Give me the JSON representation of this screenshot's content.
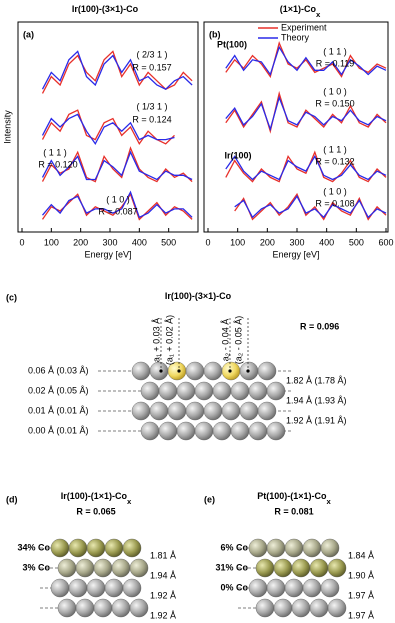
{
  "chart_data": [
    {
      "type": "line",
      "panel_label": "(a)",
      "title": "Ir(100)-(3×1)-Co",
      "y_label": "Intensity",
      "x_label": "Energy [eV]",
      "xlim": [
        0,
        600
      ],
      "xticks": [
        0,
        100,
        200,
        300,
        400,
        500
      ],
      "ylim": [
        0,
        100
      ],
      "series": [
        {
          "color": "#e8302a"
        },
        {
          "color": "#2a2ae8"
        }
      ],
      "curves": [
        {
          "beam": "( 2/3 1 )",
          "r_factor": "R = 0.157",
          "x": [
            70,
            100,
            130,
            160,
            190,
            220,
            250,
            280,
            310,
            340,
            370,
            400,
            430,
            460,
            490,
            520,
            550,
            580
          ],
          "values": [
            [
              66,
              74,
              70,
              80,
              84,
              76,
              72,
              82,
              86,
              74,
              80,
              70,
              76,
              72,
              68,
              70,
              76,
              72
            ],
            [
              68,
              76,
              72,
              82,
              86,
              74,
              70,
              80,
              84,
              76,
              82,
              72,
              74,
              70,
              68,
              72,
              74,
              70
            ]
          ]
        },
        {
          "beam": "( 1/3 1 )",
          "r_factor": "R = 0.124",
          "x": [
            70,
            100,
            130,
            160,
            190,
            220,
            250,
            280,
            310,
            340,
            370,
            400,
            430,
            460,
            490,
            520,
            550,
            580
          ],
          "values": [
            [
              44,
              52,
              48,
              56,
              58,
              46,
              44,
              52,
              54,
              46,
              50,
              42,
              48,
              44,
              42,
              46,
              null,
              null
            ],
            [
              46,
              54,
              50,
              54,
              56,
              48,
              42,
              50,
              52,
              48,
              52,
              44,
              46,
              44,
              44,
              45,
              null,
              null
            ]
          ]
        },
        {
          "beam": "( 1 1 )",
          "r_factor": "R = 0.120",
          "x": [
            70,
            100,
            130,
            160,
            190,
            220,
            250,
            280,
            310,
            340,
            370,
            400,
            430,
            460,
            490,
            520,
            550,
            580
          ],
          "values": [
            [
              24,
              32,
              28,
              30,
              38,
              26,
              24,
              36,
              30,
              26,
              40,
              30,
              26,
              24,
              30,
              26,
              28,
              24
            ],
            [
              26,
              34,
              27,
              31,
              36,
              25,
              25,
              34,
              31,
              27,
              38,
              29,
              27,
              25,
              29,
              27,
              27,
              25
            ]
          ]
        },
        {
          "beam": "( 1 0 )",
          "r_factor": "R = 0.087",
          "x": [
            70,
            100,
            130,
            160,
            190,
            220,
            250,
            280,
            310,
            340,
            370,
            400,
            430,
            460,
            490,
            520,
            550,
            580
          ],
          "values": [
            [
              6,
              12,
              10,
              14,
              18,
              8,
              12,
              10,
              8,
              12,
              18,
              6,
              10,
              14,
              8,
              12,
              10,
              6
            ],
            [
              8,
              13,
              9,
              15,
              17,
              9,
              11,
              11,
              9,
              11,
              19,
              7,
              9,
              13,
              9,
              11,
              11,
              7
            ]
          ]
        }
      ]
    },
    {
      "type": "line",
      "panel_label": "(b)",
      "title": "(1×1)-Co",
      "title_subscript": "x",
      "x_label": "Energy [eV]",
      "xlim": [
        0,
        600
      ],
      "xticks": [
        0,
        100,
        200,
        300,
        400,
        500,
        600
      ],
      "ylim": [
        0,
        100
      ],
      "series": [
        {
          "name": "Experiment",
          "color": "#e8302a"
        },
        {
          "name": "Theory",
          "color": "#2a2ae8"
        }
      ],
      "curves": [
        {
          "group": "Pt(100)",
          "beam": "( 1 1 )",
          "r_factor": "R = 0.119",
          "x": [
            60,
            90,
            120,
            150,
            180,
            210,
            240,
            270,
            300,
            330,
            360,
            390,
            420,
            450,
            480,
            510,
            540,
            570,
            600
          ],
          "values": [
            [
              76,
              82,
              78,
              84,
              80,
              74,
              90,
              80,
              78,
              82,
              76,
              78,
              80,
              74,
              84,
              78,
              76,
              80,
              78
            ],
            [
              78,
              84,
              77,
              82,
              81,
              75,
              88,
              81,
              77,
              83,
              77,
              77,
              81,
              75,
              82,
              79,
              75,
              79,
              77
            ]
          ]
        },
        {
          "beam": "( 1 0 )",
          "r_factor": "R = 0.150",
          "x": [
            60,
            90,
            120,
            150,
            180,
            210,
            240,
            270,
            300,
            330,
            360,
            390,
            420,
            450,
            480,
            510,
            540,
            570,
            600
          ],
          "values": [
            [
              52,
              58,
              50,
              56,
              62,
              48,
              66,
              52,
              50,
              58,
              54,
              50,
              56,
              52,
              60,
              52,
              50,
              56,
              52
            ],
            [
              54,
              59,
              51,
              55,
              61,
              49,
              64,
              53,
              51,
              57,
              55,
              51,
              55,
              53,
              58,
              53,
              51,
              55,
              53
            ]
          ]
        },
        {
          "group": "Ir(100)",
          "beam": "( 1 1 )",
          "r_factor": "R = 0.132",
          "x": [
            60,
            90,
            120,
            150,
            180,
            210,
            240,
            270,
            300,
            330,
            360,
            390,
            420,
            450,
            480,
            510,
            540,
            570,
            600
          ],
          "values": [
            [
              26,
              34,
              28,
              24,
              30,
              26,
              24,
              36,
              30,
              28,
              38,
              26,
              24,
              28,
              34,
              26,
              24,
              30,
              26
            ],
            [
              30,
              36,
              29,
              25,
              29,
              27,
              25,
              34,
              31,
              29,
              36,
              27,
              25,
              27,
              32,
              27,
              25,
              29,
              27
            ]
          ]
        },
        {
          "beam": "( 1 0 )",
          "r_factor": "R = 0.108",
          "x": [
            90,
            120,
            150,
            180,
            210,
            240,
            270,
            300,
            330,
            360,
            390,
            420,
            450,
            480,
            510,
            540,
            570,
            600
          ],
          "values": [
            [
              10,
              16,
              6,
              10,
              14,
              8,
              12,
              18,
              8,
              12,
              6,
              14,
              10,
              8,
              16,
              6,
              12,
              8
            ],
            [
              12,
              15,
              7,
              11,
              13,
              9,
              11,
              17,
              9,
              11,
              7,
              13,
              11,
              9,
              15,
              7,
              11,
              9
            ]
          ]
        }
      ]
    }
  ],
  "panel_c": {
    "label": "(c)",
    "title": "Ir(100)-(3×1)-Co",
    "r_factor": "R = 0.096",
    "annotations": [
      "a₁ + 0.03 Å",
      "(a₁ + 0.02 Å)",
      "a₂ - 0.04 Å",
      "(a₂ - 0.05 Å)"
    ],
    "left_labels": [
      "0.06 Å (0.03 Å)",
      "0.02 Å (0.05 Å)",
      "0.01 Å (0.01 Å)",
      "0.00 Å (0.01 Å)"
    ],
    "right_labels": [
      "1.82 Å (1.78 Å)",
      "1.94 Å (1.93 Å)",
      "1.92 Å (1.91 Å)"
    ]
  },
  "panel_d": {
    "label": "(d)",
    "title": "Ir(100)-(1×1)-Co",
    "title_subscript": "x",
    "r_factor": "R = 0.065",
    "left_labels": [
      "34% Co",
      "3% Co"
    ],
    "right_labels": [
      "1.81 Å",
      "1.94 Å",
      "1.92 Å",
      "1.92 Å"
    ]
  },
  "panel_e": {
    "label": "(e)",
    "title": "Pt(100)-(1×1)-Co",
    "title_subscript": "x",
    "r_factor": "R = 0.081",
    "left_labels": [
      "6% Co",
      "31% Co",
      "0% Co"
    ],
    "right_labels": [
      "1.84 Å",
      "1.90 Å",
      "1.97 Å",
      "1.97 Å"
    ]
  }
}
